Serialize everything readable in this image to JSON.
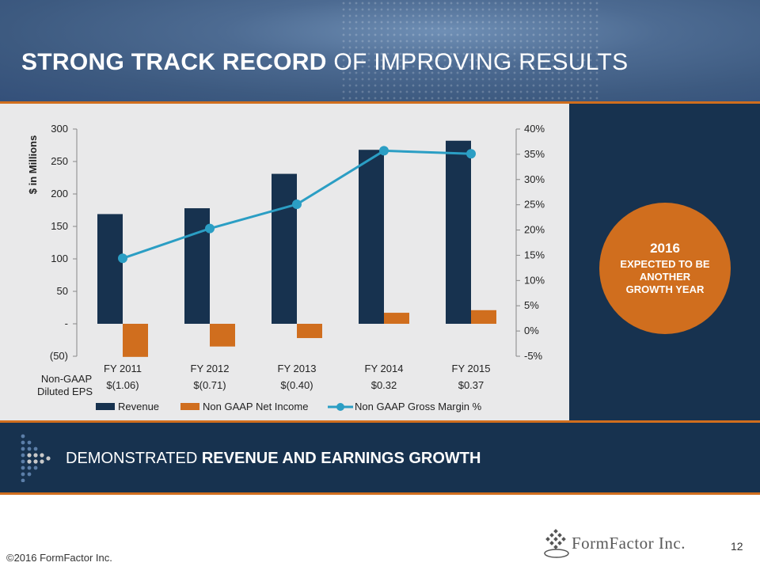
{
  "slide": {
    "title_bold": "STRONG TRACK RECORD",
    "title_light": " OF IMPROVING RESULTS",
    "banner_light": "DEMONSTRATED ",
    "banner_bold": "REVENUE AND EARNINGS GROWTH",
    "copyright": "©2016 FormFactor Inc.",
    "page_number": "12",
    "logo_text": "FormFactor Inc."
  },
  "callout": {
    "year": "2016",
    "lines": [
      "EXPECTED TO BE",
      "ANOTHER",
      "GROWTH YEAR"
    ]
  },
  "colors": {
    "revenue": "#17324f",
    "net_income": "#d06e1e",
    "gross_margin": "#2b9ec4",
    "accent": "#d06e1e"
  },
  "chart_data": {
    "type": "bar",
    "title": "",
    "ylabel": "$ in Millions",
    "categories": [
      "FY 2011",
      "FY 2012",
      "FY 2013",
      "FY 2014",
      "FY 2015"
    ],
    "left_axis": {
      "ylim": [
        -50,
        300
      ],
      "ticks": [
        300,
        250,
        200,
        150,
        100,
        50,
        0,
        -50
      ],
      "tick_labels": [
        "300",
        "250",
        "200",
        "150",
        "100",
        "50",
        "-",
        "(50)"
      ]
    },
    "right_axis": {
      "ylim": [
        -5,
        40
      ],
      "ticks": [
        40,
        35,
        30,
        25,
        20,
        15,
        10,
        5,
        0,
        -5
      ],
      "tick_labels": [
        "40%",
        "35%",
        "30%",
        "25%",
        "20%",
        "15%",
        "10%",
        "5%",
        "0%",
        "-5%"
      ]
    },
    "series": [
      {
        "name": "Revenue",
        "type": "bar",
        "axis": "left",
        "values": [
          169,
          178,
          231,
          268,
          282
        ]
      },
      {
        "name": "Non GAAP Net Income",
        "type": "bar",
        "axis": "left",
        "values": [
          -51,
          -35,
          -22,
          17,
          21
        ]
      },
      {
        "name": "Non GAAP Gross Margin %",
        "type": "line",
        "axis": "right",
        "values": [
          14.4,
          20.3,
          25.1,
          35.7,
          35.1
        ]
      }
    ],
    "eps_label": [
      "Non-GAAP",
      "Diluted EPS"
    ],
    "eps_values": [
      "$(1.06)",
      "$(0.71)",
      "$(0.40)",
      "$0.32",
      "$0.37"
    ],
    "legend": [
      "Revenue",
      "Non GAAP Net Income",
      "Non GAAP Gross Margin %"
    ],
    "legend_position": "bottom"
  }
}
